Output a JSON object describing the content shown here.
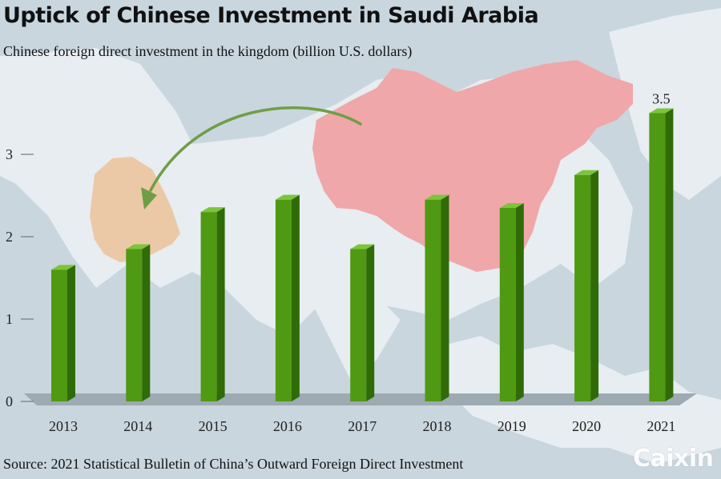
{
  "header": {
    "title": "Uptick of Chinese Investment in Saudi Arabia",
    "subtitle": "Chinese foreign direct investment in the kingdom (billion U.S. dollars)"
  },
  "footer": {
    "source": "Source: 2021 Statistical Bulletin of China’s Outward Foreign Direct Investment",
    "logo": "Caixin"
  },
  "colors": {
    "bar_front": "#4f9a12",
    "bar_side": "#2f6b07",
    "bar_top": "#7cc53a",
    "floor": "#9eaab2",
    "china_map": "#f0a7a9",
    "saudi_map": "#ecc9a6",
    "sea": "#c9d6de",
    "land": "#e7edf1",
    "arrow": "#6f9e45"
  },
  "chart_data": {
    "type": "bar",
    "categories": [
      "2013",
      "2014",
      "2015",
      "2016",
      "2017",
      "2018",
      "2019",
      "2020",
      "2021"
    ],
    "values": [
      1.6,
      1.85,
      2.3,
      2.45,
      1.85,
      2.45,
      2.35,
      2.75,
      3.5
    ],
    "ylim": [
      0,
      3.5
    ],
    "yticks": [
      "0",
      "1",
      "2",
      "3"
    ],
    "data_labels": [
      {
        "index": 8,
        "text": "3.5"
      }
    ],
    "grid": false,
    "style": "3d-bar"
  }
}
